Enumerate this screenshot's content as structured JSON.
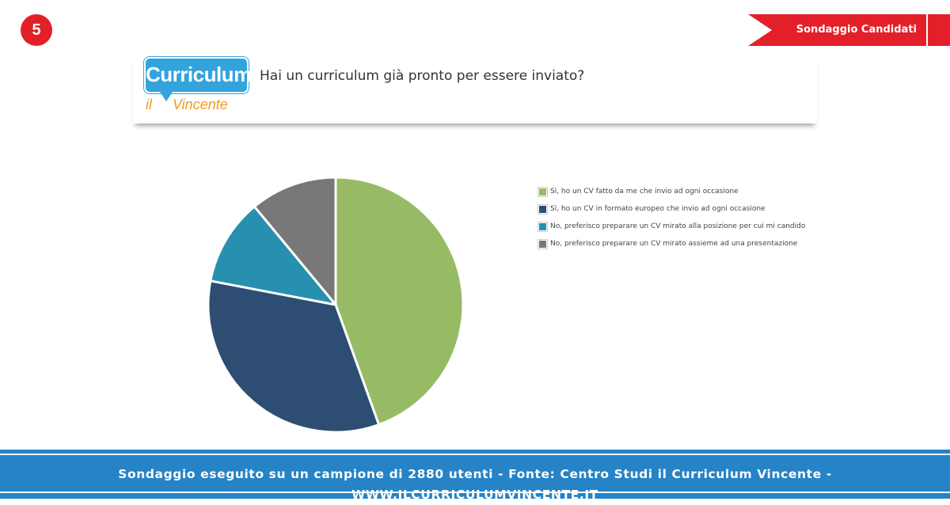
{
  "slide_number": "5",
  "ribbon_label": "Sondaggio Candidati",
  "logo": {
    "word": "Curriculum",
    "il": "il",
    "vincente": "Vincente"
  },
  "question": "Hai un curriculum già pronto per essere inviato?",
  "colors": {
    "accent_red": "#e3202a",
    "footer_blue": "#2583c6",
    "logo_blue": "#33a3dc",
    "logo_orange": "#f39a1d"
  },
  "chart_data": {
    "type": "pie",
    "title": "",
    "legend_position": "right",
    "slices": [
      {
        "label": "Sì, ho un CV fatto da me che invio ad ogni occasione",
        "value": 44.5,
        "color": "#97bb65"
      },
      {
        "label": "Sì, ho un CV in formato europeo che invio ad ogni occasione",
        "value": 33.5,
        "color": "#2d4e72"
      },
      {
        "label": "No, preferisco preparare un CV mirato alla posizione per cui mi candido",
        "value": 11,
        "color": "#2790b0"
      },
      {
        "label": "No, preferisco preparare un CV mirato assieme ad una presentazione",
        "value": 11,
        "color": "#787878"
      }
    ]
  },
  "footer": "Sondaggio eseguito su un campione di 2880 utenti - Fonte: Centro Studi il Curriculum Vincente - WWW.ILCURRICULUMVINCENTE.IT"
}
